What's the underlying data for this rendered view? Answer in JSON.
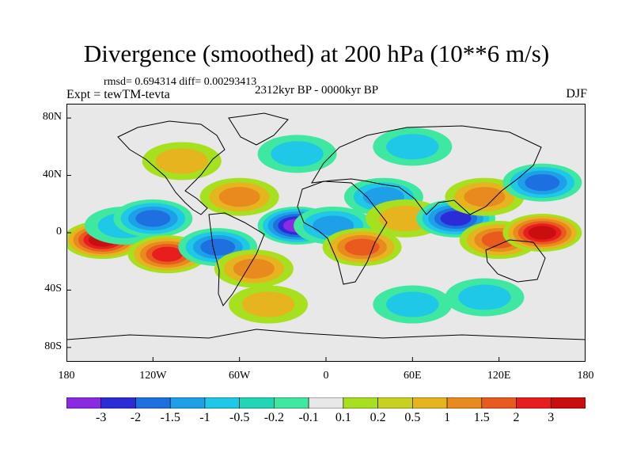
{
  "figure": {
    "title": "Divergence (smoothed) at 200 hPa (10**6 m/s)",
    "stats": "rmsd= 0.694314 diff= 0.00293413",
    "experiment": "Expt = tewTM-tevta",
    "period": "2312kyr BP - 0000kyr BP",
    "season": "DJF"
  },
  "chart_data": {
    "type": "heatmap",
    "title": "Divergence (smoothed) at 200 hPa (10**6 m/s)",
    "xlabel": "",
    "ylabel": "",
    "x_ticks": [
      "180",
      "120W",
      "60W",
      "0",
      "60E",
      "120E",
      "180"
    ],
    "x_tick_values": [
      -180,
      -120,
      -60,
      0,
      60,
      120,
      180
    ],
    "y_ticks": [
      "80N",
      "40N",
      "0",
      "40S",
      "80S"
    ],
    "y_tick_values": [
      80,
      40,
      0,
      -40,
      -80
    ],
    "xlim": [
      -180,
      180
    ],
    "ylim": [
      -90,
      90
    ],
    "colorbar": {
      "labels": [
        "-3",
        "-2",
        "-1.5",
        "-1",
        "-0.5",
        "-0.2",
        "-0.1",
        "0.1",
        "0.2",
        "0.5",
        "1",
        "1.5",
        "2",
        "3"
      ],
      "colors": [
        "#8a2be2",
        "#2b2bd8",
        "#1e6fe0",
        "#1ea0e8",
        "#1ec8e6",
        "#20d6b4",
        "#3ee8a0",
        "#e8e8e8",
        "#a6e01e",
        "#c8d21e",
        "#e6b41e",
        "#e88a1e",
        "#e85a1e",
        "#e81e1e",
        "#c80e0e"
      ]
    },
    "anomaly_features": [
      {
        "lon": -155,
        "lat": -5,
        "value": 3,
        "note": "central Pacific maximum"
      },
      {
        "lon": -140,
        "lat": 5,
        "value": -0.5
      },
      {
        "lon": -120,
        "lat": 10,
        "value": -1.5
      },
      {
        "lon": -110,
        "lat": -15,
        "value": 2
      },
      {
        "lon": -75,
        "lat": -10,
        "value": -1.5
      },
      {
        "lon": -60,
        "lat": 25,
        "value": 1
      },
      {
        "lon": -50,
        "lat": -25,
        "value": 1
      },
      {
        "lon": -20,
        "lat": 5,
        "value": -3,
        "note": "tropical Atlantic minimum"
      },
      {
        "lon": 5,
        "lat": 5,
        "value": -1
      },
      {
        "lon": 25,
        "lat": -10,
        "value": 1.5
      },
      {
        "lon": 40,
        "lat": 25,
        "value": -1
      },
      {
        "lon": 55,
        "lat": 10,
        "value": 0.5
      },
      {
        "lon": 90,
        "lat": 10,
        "value": -2
      },
      {
        "lon": 110,
        "lat": 25,
        "value": 1
      },
      {
        "lon": 120,
        "lat": -5,
        "value": 1.5
      },
      {
        "lon": 150,
        "lat": 0,
        "value": 3,
        "note": "western Pacific maximum"
      },
      {
        "lon": 150,
        "lat": 35,
        "value": -1.5
      },
      {
        "lon": -100,
        "lat": 50,
        "value": 0.5
      },
      {
        "lon": -20,
        "lat": 55,
        "value": -0.5
      },
      {
        "lon": 60,
        "lat": 60,
        "value": -0.5
      },
      {
        "lon": -40,
        "lat": -50,
        "value": 0.5
      },
      {
        "lon": 60,
        "lat": -50,
        "value": -0.5
      },
      {
        "lon": 110,
        "lat": -45,
        "value": -0.5
      }
    ]
  }
}
